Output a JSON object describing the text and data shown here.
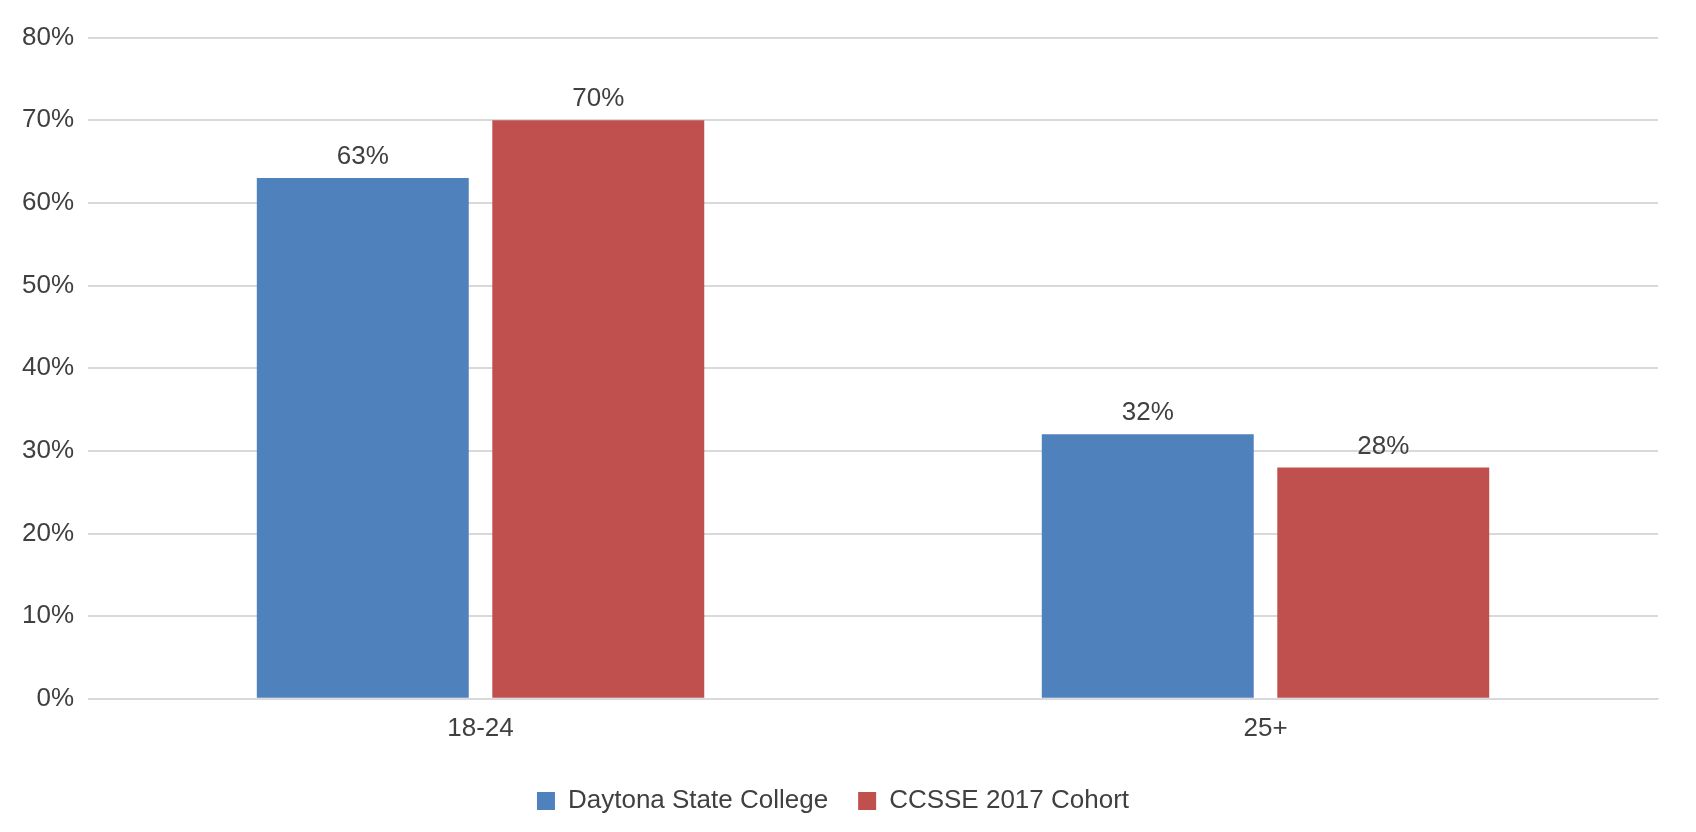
{
  "chart_data": {
    "type": "bar",
    "categories": [
      "18-24",
      "25+"
    ],
    "series": [
      {
        "name": "Daytona State College",
        "color": "#4f81bd",
        "values": [
          63,
          32
        ],
        "value_labels": [
          "63%",
          "32%"
        ]
      },
      {
        "name": "CCSSE 2017 Cohort",
        "color": "#c0504d",
        "values": [
          70,
          28
        ],
        "value_labels": [
          "70%",
          "28%"
        ]
      }
    ],
    "ylim": [
      0,
      80
    ],
    "yticks": [
      {
        "value": 0,
        "label": "0%"
      },
      {
        "value": 10,
        "label": "10%"
      },
      {
        "value": 20,
        "label": "20%"
      },
      {
        "value": 30,
        "label": "30%"
      },
      {
        "value": 40,
        "label": "40%"
      },
      {
        "value": 50,
        "label": "50%"
      },
      {
        "value": 60,
        "label": "60%"
      },
      {
        "value": 70,
        "label": "70%"
      },
      {
        "value": 80,
        "label": "80%"
      }
    ],
    "grid": "y",
    "legend": "bottom"
  }
}
